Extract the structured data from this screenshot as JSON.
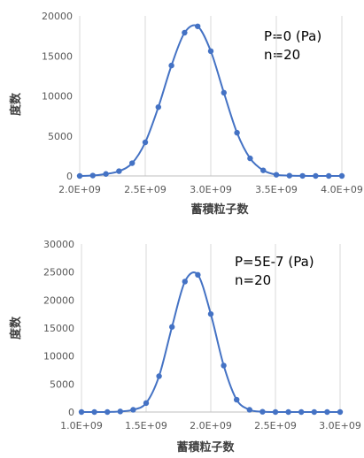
{
  "chart_data": [
    {
      "type": "line",
      "markers": true,
      "smooth": true,
      "color": "#4472c4",
      "xlim": [
        2000000000,
        4000000000
      ],
      "ylim": [
        0,
        20000
      ],
      "x_ticks": [
        "2.0E+09",
        "2.5E+09",
        "3.0E+09",
        "3.5E+09",
        "4.0E+09"
      ],
      "y_ticks": [
        "0",
        "5000",
        "10000",
        "15000",
        "20000"
      ],
      "xlabel": "蓄積粒子数",
      "ylabel": "度数",
      "annotation": [
        "P=0 (Pa)",
        "n=20"
      ],
      "grid": "vertical",
      "x": [
        2000000000.0,
        2100000000.0,
        2200000000.0,
        2300000000.0,
        2400000000.0,
        2500000000.0,
        2600000000.0,
        2700000000.0,
        2800000000.0,
        2900000000.0,
        3000000000.0,
        3100000000.0,
        3200000000.0,
        3300000000.0,
        3400000000.0,
        3500000000.0,
        3600000000.0,
        3700000000.0,
        3800000000.0,
        3900000000.0,
        4000000000.0
      ],
      "values": [
        0,
        50,
        250,
        600,
        1600,
        4200,
        8600,
        13800,
        17900,
        18700,
        15600,
        10400,
        5400,
        2200,
        700,
        150,
        40,
        10,
        0,
        0,
        0
      ]
    },
    {
      "type": "line",
      "markers": true,
      "smooth": true,
      "color": "#4472c4",
      "xlim": [
        1000000000,
        3000000000
      ],
      "ylim": [
        0,
        30000
      ],
      "x_ticks": [
        "1.0E+09",
        "1.5E+09",
        "2.0E+09",
        "2.5E+09",
        "3.0E+09"
      ],
      "y_ticks": [
        "0",
        "5000",
        "10000",
        "15000",
        "20000",
        "25000",
        "30000"
      ],
      "xlabel": "蓄積粒子数",
      "ylabel": "度数",
      "annotation": [
        "P=5E-7 (Pa)",
        "n=20"
      ],
      "grid": "vertical",
      "x": [
        1000000000.0,
        1100000000.0,
        1200000000.0,
        1300000000.0,
        1400000000.0,
        1500000000.0,
        1600000000.0,
        1700000000.0,
        1800000000.0,
        1900000000.0,
        2000000000.0,
        2100000000.0,
        2200000000.0,
        2300000000.0,
        2400000000.0,
        2500000000.0,
        2600000000.0,
        2700000000.0,
        2800000000.0,
        2900000000.0,
        3000000000.0
      ],
      "values": [
        0,
        0,
        0,
        100,
        400,
        1600,
        6400,
        15200,
        23300,
        24500,
        17500,
        8300,
        2200,
        400,
        50,
        0,
        0,
        0,
        0,
        0,
        0
      ]
    }
  ]
}
